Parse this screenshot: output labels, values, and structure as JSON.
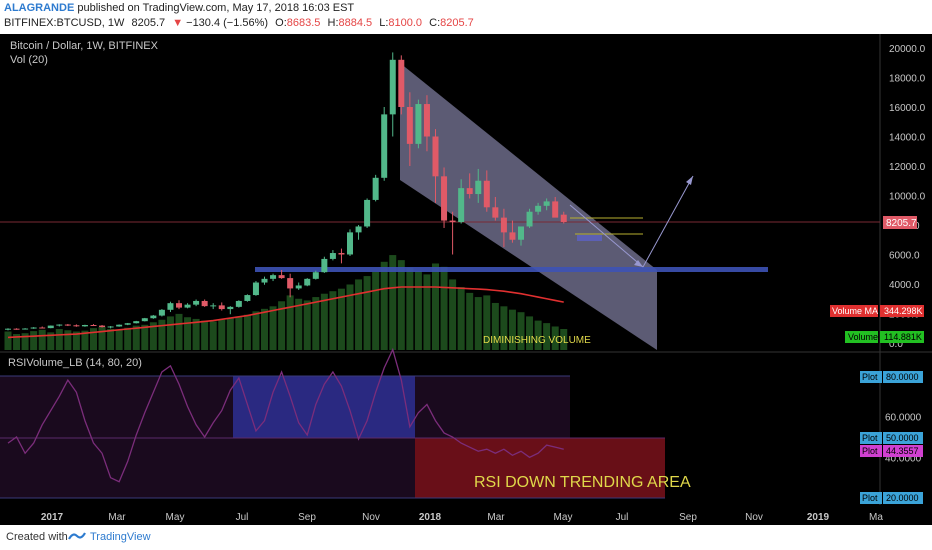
{
  "header": {
    "author": "ALAGRANDE",
    "published_text": "published on TradingView.com, May 17, 2018 16:03 EST",
    "symbol": "BITFINEX:BTCUSD, 1W",
    "last": "8205.7",
    "change_arrow": "▼",
    "change": "−130.4 (−1.56%)",
    "o_label": "O:",
    "o_value": "8683.5",
    "h_label": "H:",
    "h_value": "8884.5",
    "l_label": "L:",
    "l_value": "8100.0",
    "c_label": "C:",
    "c_value": "8205.7"
  },
  "footer": {
    "created_with": "Created with",
    "brand": "TradingView"
  },
  "chart_data": {
    "type": "candlestick",
    "colors": {
      "background": "#000000",
      "up": "#52b88a",
      "down": "#e05a67",
      "volume": "#1c4a1c",
      "volume_ma": "#e03030",
      "rsi": "#7b2d7b",
      "channel": "#9a98c4",
      "support": "#3d52b5",
      "price_label": "#e05a67"
    },
    "main_pane": {
      "title": "Bitcoin / Dollar, 1W, BITFINEX",
      "volume_label": "Vol (20)",
      "y_ticks": [
        "20000.0",
        "18000.0",
        "16000.0",
        "14000.0",
        "12000.0",
        "10000.0",
        "8000.0",
        "6000.0",
        "4000.0",
        "2000.0",
        "0.0"
      ],
      "ylim": [
        0,
        20500
      ],
      "last_price": 8205.7,
      "price_label": "8205.7",
      "support_level": 5000,
      "candles": [
        [
          900,
          1000,
          860,
          970
        ],
        [
          970,
          1000,
          900,
          930
        ],
        [
          930,
          1010,
          910,
          980
        ],
        [
          980,
          1080,
          960,
          1050
        ],
        [
          1050,
          1120,
          1000,
          1010
        ],
        [
          1010,
          1190,
          1000,
          1180
        ],
        [
          1180,
          1270,
          1120,
          1250
        ],
        [
          1250,
          1290,
          1150,
          1200
        ],
        [
          1200,
          1260,
          1100,
          1130
        ],
        [
          1130,
          1240,
          1100,
          1220
        ],
        [
          1220,
          1280,
          1160,
          1180
        ],
        [
          1180,
          1220,
          1050,
          1080
        ],
        [
          1080,
          1150,
          990,
          1120
        ],
        [
          1120,
          1260,
          1100,
          1240
        ],
        [
          1240,
          1360,
          1210,
          1340
        ],
        [
          1340,
          1500,
          1320,
          1480
        ],
        [
          1480,
          1700,
          1460,
          1680
        ],
        [
          1680,
          1900,
          1640,
          1860
        ],
        [
          1860,
          2300,
          1800,
          2250
        ],
        [
          2250,
          2800,
          2100,
          2700
        ],
        [
          2700,
          2900,
          2300,
          2400
        ],
        [
          2400,
          2700,
          2350,
          2600
        ],
        [
          2600,
          2950,
          2500,
          2850
        ],
        [
          2850,
          2950,
          2450,
          2500
        ],
        [
          2500,
          2700,
          2300,
          2550
        ],
        [
          2550,
          2750,
          2200,
          2300
        ],
        [
          2300,
          2500,
          1950,
          2450
        ],
        [
          2450,
          2900,
          2400,
          2850
        ],
        [
          2850,
          3300,
          2800,
          3250
        ],
        [
          3250,
          4200,
          3200,
          4100
        ],
        [
          4100,
          4500,
          3950,
          4350
        ],
        [
          4350,
          4700,
          4200,
          4600
        ],
        [
          4600,
          4950,
          4350,
          4400
        ],
        [
          4400,
          4700,
          3100,
          3700
        ],
        [
          3700,
          4100,
          3600,
          3900
        ],
        [
          3900,
          4400,
          3850,
          4350
        ],
        [
          4350,
          4900,
          4300,
          4800
        ],
        [
          4800,
          5850,
          4750,
          5700
        ],
        [
          5700,
          6300,
          5600,
          6100
        ],
        [
          6100,
          6400,
          5400,
          6000
        ],
        [
          6000,
          7700,
          5900,
          7500
        ],
        [
          7500,
          8000,
          7000,
          7900
        ],
        [
          7900,
          9800,
          7800,
          9700
        ],
        [
          9700,
          11400,
          9600,
          11200
        ],
        [
          11200,
          16000,
          11000,
          15500
        ],
        [
          15500,
          19700,
          14000,
          19200
        ],
        [
          19200,
          19500,
          15500,
          16000
        ],
        [
          16000,
          17000,
          12000,
          13500
        ],
        [
          13500,
          16500,
          13200,
          16200
        ],
        [
          16200,
          16800,
          13000,
          14000
        ],
        [
          14000,
          14500,
          9500,
          11300
        ],
        [
          11300,
          11900,
          7800,
          8300
        ],
        [
          8300,
          8900,
          6000,
          8200
        ],
        [
          8200,
          11100,
          8100,
          10500
        ],
        [
          10500,
          11500,
          9800,
          10100
        ],
        [
          10100,
          11800,
          9500,
          11000
        ],
        [
          11000,
          11700,
          8900,
          9200
        ],
        [
          9200,
          9900,
          8300,
          8500
        ],
        [
          8500,
          9100,
          6500,
          7500
        ],
        [
          7500,
          8300,
          6800,
          7000
        ],
        [
          7000,
          7800,
          6600,
          7900
        ],
        [
          7900,
          9100,
          7800,
          8900
        ],
        [
          8900,
          9500,
          8700,
          9300
        ],
        [
          9300,
          9800,
          9000,
          9600
        ],
        [
          9600,
          9900,
          8700,
          8500
        ],
        [
          8700,
          8900,
          8100,
          8205
        ]
      ],
      "volume": [
        44,
        38,
        40,
        45,
        48,
        42,
        50,
        47,
        44,
        46,
        52,
        55,
        50,
        48,
        53,
        58,
        60,
        66,
        72,
        80,
        86,
        78,
        74,
        70,
        68,
        72,
        76,
        80,
        84,
        92,
        98,
        104,
        116,
        130,
        122,
        118,
        126,
        134,
        140,
        146,
        156,
        168,
        176,
        186,
        210,
        226,
        214,
        196,
        188,
        180,
        206,
        198,
        168,
        150,
        136,
        126,
        130,
        112,
        104,
        96,
        90,
        80,
        70,
        64,
        56,
        50
      ],
      "volume_ma": [
        30,
        31,
        32,
        33,
        34,
        35,
        36,
        37,
        38,
        40,
        42,
        44,
        46,
        48,
        50,
        52,
        54,
        56,
        58,
        60,
        62,
        64,
        66,
        68,
        70,
        73,
        76,
        79,
        82,
        86,
        90,
        94,
        98,
        102,
        106,
        110,
        114,
        118,
        122,
        126,
        130,
        134,
        138,
        142,
        146,
        148,
        150,
        150,
        150,
        150,
        150,
        149,
        148,
        147,
        146,
        145,
        144,
        142,
        140,
        137,
        134,
        130,
        126,
        122,
        118,
        114
      ],
      "volume_ma_label": "Volume MA",
      "volume_ma_value": "344.298K",
      "volume_tag": "Volume",
      "volume_value": "114.881K",
      "annotation": "DIMINISHING VOLUME"
    },
    "rsi_pane": {
      "title": "RSIVolume_LB (14, 80, 20)",
      "y_ticks": [
        "80.0000",
        "60.0000",
        "50.0000",
        "40.0000",
        "20.0000"
      ],
      "ylim": [
        10,
        100
      ],
      "plot_label": "Plot",
      "plot_80": "80.0000",
      "plot_50": "50.0000",
      "plot_20": "20.0000",
      "current_value": "44.3557",
      "values": [
        47,
        50,
        42,
        47,
        56,
        63,
        70,
        78,
        72,
        58,
        47,
        42,
        30,
        28,
        38,
        51,
        62,
        72,
        82,
        85,
        76,
        65,
        56,
        50,
        57,
        63,
        73,
        79,
        66,
        53,
        58,
        72,
        82,
        70,
        57,
        51,
        66,
        76,
        82,
        75,
        63,
        49,
        58,
        72,
        84,
        93,
        78,
        55,
        62,
        66,
        58,
        52,
        50,
        47,
        45,
        43,
        44,
        42,
        44,
        41,
        43,
        40,
        42,
        46,
        45,
        44
      ],
      "annotation": "RSI DOWN TRENDING AREA"
    },
    "x_ticks": [
      "2017",
      "Mar",
      "May",
      "Jul",
      "Sep",
      "Nov",
      "2018",
      "Mar",
      "May",
      "Jul",
      "Sep",
      "Nov",
      "2019",
      "Ma"
    ]
  }
}
